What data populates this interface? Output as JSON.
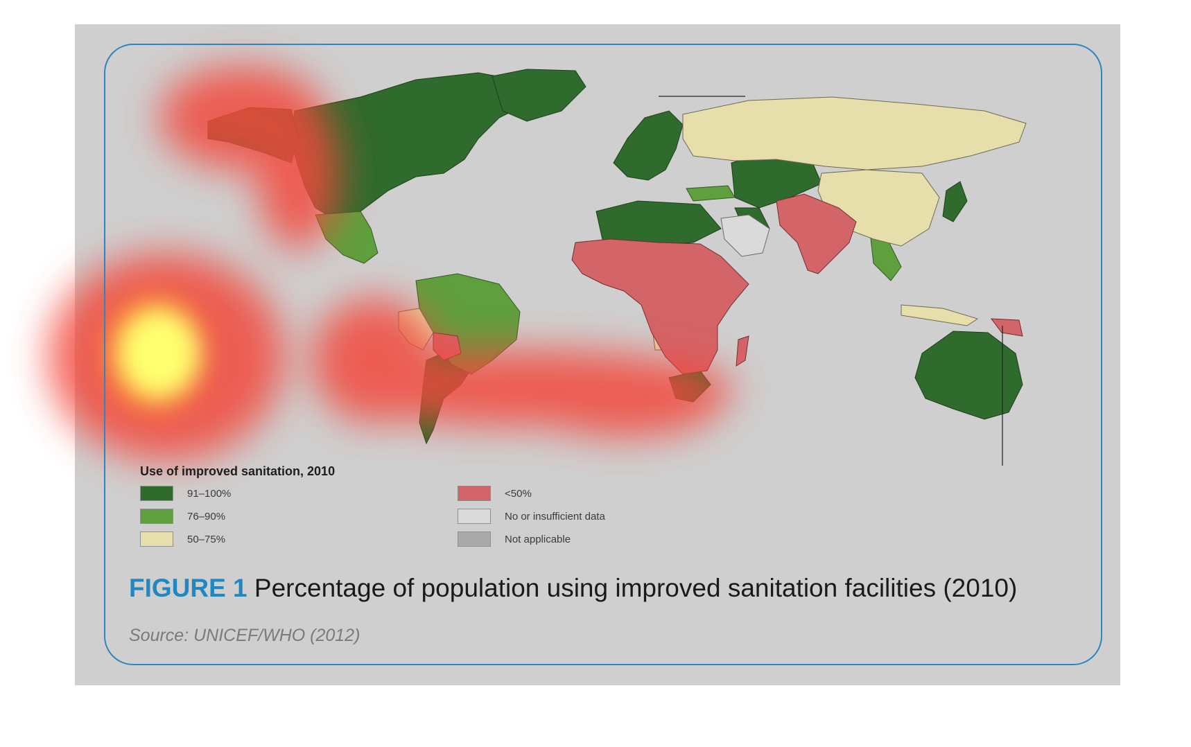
{
  "figure": {
    "label": "FIGURE 1",
    "title": "Percentage of population using improved sanitation facilities (2010)",
    "source": "Source: UNICEF/WHO (2012)"
  },
  "legend": {
    "title": "Use of improved sanitation, 2010",
    "items": [
      {
        "label": "91–100%",
        "color": "#2f6b2c"
      },
      {
        "label": "76–90%",
        "color": "#5f9f3d"
      },
      {
        "label": "50–75%",
        "color": "#e6dfac"
      },
      {
        "label": "<50%",
        "color": "#d36468"
      },
      {
        "label": "No or insufficient data",
        "color": "#cfcfcf"
      },
      {
        "label": "Not applicable",
        "color": "#a9a9a9"
      }
    ]
  },
  "colors": {
    "accent": "#2b86bf",
    "panel_background": "#cfcfcf",
    "country_border": "#4a4a4a"
  },
  "overlay": {
    "type": "attention heatmap",
    "colors": [
      "#ffff60",
      "#f2483c"
    ]
  }
}
